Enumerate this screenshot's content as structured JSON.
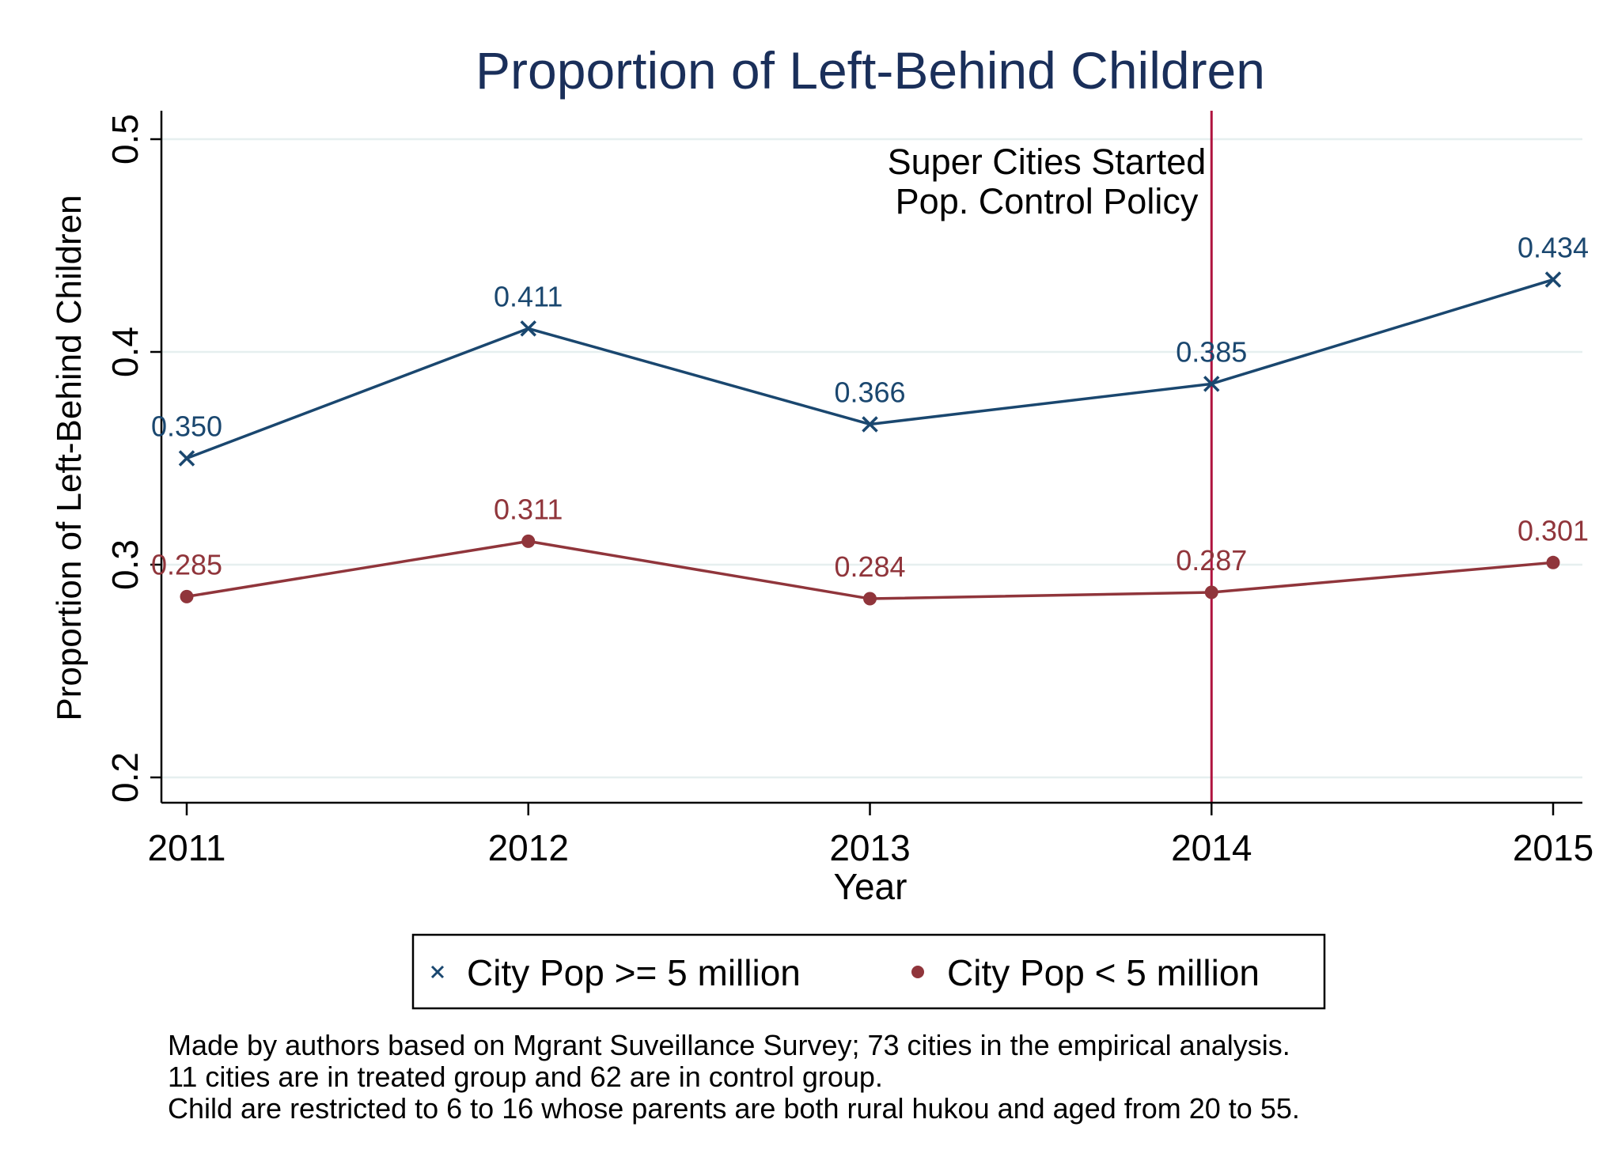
{
  "chart_data": {
    "type": "line",
    "title": "Proportion of Left-Behind Children",
    "xlabel": "Year",
    "ylabel": "Proportion of Left-Behind Children",
    "x": [
      2011,
      2012,
      2013,
      2014,
      2015
    ],
    "xlim": [
      2011,
      2015
    ],
    "ylim": [
      0.2,
      0.5
    ],
    "yticks": [
      0.2,
      0.3,
      0.4,
      0.5
    ],
    "ytick_labels": [
      "0.2",
      "0.3",
      "0.4",
      "0.5"
    ],
    "grid": true,
    "legend_position": "bottom",
    "series": [
      {
        "name": "City Pop >= 5 million",
        "marker": "x",
        "color": "#1a476f",
        "values": [
          0.35,
          0.411,
          0.366,
          0.385,
          0.434
        ],
        "labels": [
          "0.350",
          "0.411",
          "0.366",
          "0.385",
          "0.434"
        ]
      },
      {
        "name": "City Pop < 5 million",
        "marker": "circle",
        "color": "#90353b",
        "values": [
          0.285,
          0.311,
          0.284,
          0.287,
          0.301
        ],
        "labels": [
          "0.285",
          "0.311",
          "0.284",
          "0.287",
          "0.301"
        ]
      }
    ],
    "reference_line": {
      "x": 2014,
      "color": "#b0133f",
      "label_lines": [
        "Super Cities Started",
        "Pop. Control Policy"
      ]
    },
    "notes": [
      "Made by authors based on Mgrant Suveillance Survey; 73 cities in the empirical analysis.",
      "11 cities are in treated group and 62 are in control group.",
      "Child are restricted to 6 to 16 whose parents are both rural hukou and aged from 20 to 55."
    ],
    "colors": {
      "title": "#1a2f5a",
      "grid": "#e6efef",
      "axis": "#000000",
      "text": "#000000"
    }
  }
}
